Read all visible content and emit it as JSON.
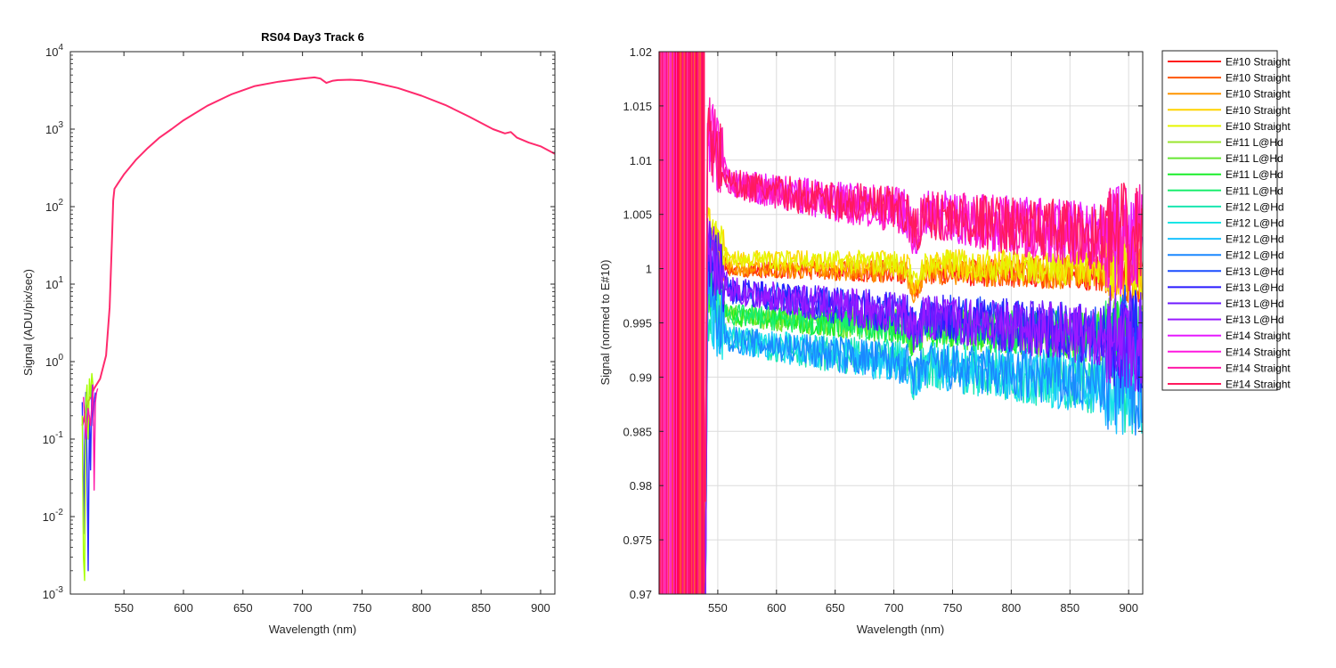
{
  "chart_data": [
    {
      "type": "line",
      "title": "RS04 Day3 Track 6",
      "xlabel": "Wavelength (nm)",
      "ylabel": "Signal (ADU/pix/sec)",
      "yscale": "log",
      "xlim": [
        505,
        912
      ],
      "ylim": [
        0.001,
        10000
      ],
      "xticks": [
        550,
        600,
        650,
        700,
        750,
        800,
        850,
        900
      ],
      "yticks": [
        0.001,
        0.01,
        0.1,
        1,
        10,
        100,
        1000,
        10000
      ],
      "ytick_labels": [
        {
          "base": "10",
          "exp": "-3"
        },
        {
          "base": "10",
          "exp": "-2"
        },
        {
          "base": "10",
          "exp": "-1"
        },
        {
          "base": "10",
          "exp": "0"
        },
        {
          "base": "10",
          "exp": "1"
        },
        {
          "base": "10",
          "exp": "2"
        },
        {
          "base": "10",
          "exp": "3"
        },
        {
          "base": "10",
          "exp": "4"
        }
      ],
      "grid": false,
      "series": [
        {
          "color": "#ff2a6d",
          "x": [
            515,
            520,
            525,
            530,
            535,
            538,
            540,
            541,
            542,
            545,
            550,
            560,
            570,
            580,
            590,
            600,
            620,
            640,
            660,
            680,
            700,
            710,
            715,
            720,
            725,
            730,
            740,
            750,
            760,
            780,
            800,
            820,
            840,
            860,
            870,
            875,
            880,
            890,
            900,
            912
          ],
          "y": [
            0.15,
            0.3,
            0.45,
            0.6,
            1.2,
            5,
            40,
            120,
            170,
            200,
            260,
            400,
            570,
            780,
            1000,
            1300,
            2000,
            2800,
            3600,
            4100,
            4500,
            4650,
            4500,
            3950,
            4200,
            4300,
            4350,
            4250,
            4000,
            3400,
            2700,
            2050,
            1450,
            1000,
            880,
            920,
            780,
            670,
            600,
            480
          ]
        },
        {
          "color": "#2b2bff",
          "x": [
            515,
            516,
            517,
            518,
            519,
            520,
            521,
            522,
            523,
            524,
            525,
            526
          ],
          "y": [
            0.3,
            0.006,
            0.08,
            0.4,
            0.05,
            0.002,
            0.2,
            0.04,
            0.5,
            0.15,
            0.3,
            0.4
          ]
        },
        {
          "color": "#a6ff00",
          "x": [
            515,
            516,
            517,
            518,
            519,
            520,
            521,
            522,
            523,
            524
          ],
          "y": [
            0.2,
            0.003,
            0.0015,
            0.3,
            0.5,
            0.1,
            0.6,
            0.35,
            0.7,
            0.5
          ]
        },
        {
          "color": "#ff1aa8",
          "x": [
            516,
            518,
            520,
            522,
            524,
            525,
            526,
            527,
            528
          ],
          "y": [
            0.35,
            0.1,
            0.25,
            0.15,
            0.5,
            0.022,
            0.3,
            0.4,
            0.45
          ]
        }
      ]
    },
    {
      "type": "line",
      "title": "",
      "xlabel": "Wavelength (nm)",
      "ylabel": "Signal (normed to E#10)",
      "xlim": [
        500,
        912
      ],
      "ylim": [
        0.97,
        1.02
      ],
      "xticks": [
        550,
        600,
        650,
        700,
        750,
        800,
        850,
        900
      ],
      "yticks": [
        0.97,
        0.975,
        0.98,
        0.985,
        0.99,
        0.995,
        1,
        1.005,
        1.01,
        1.015,
        1.02
      ],
      "ytick_labels": [
        "0.97",
        "0.975",
        "0.98",
        "0.985",
        "0.99",
        "0.995",
        "1",
        "1.005",
        "1.01",
        "1.015",
        "1.02"
      ],
      "grid": true,
      "legend": "outside-right",
      "saturated_band": {
        "x_start": 500,
        "x_end": 539,
        "colors": [
          "#ff00aa",
          "#ff2a6d",
          "#ff5a3a",
          "#ff0066",
          "#ff3fd0",
          "#ff1744"
        ]
      },
      "series": [
        {
          "name": "E#10 Straight",
          "color": "#ff1a1a",
          "start": 1.0,
          "end": 0.9995,
          "noise": 0.0006,
          "spread": 0.0028
        },
        {
          "name": "E#10 Straight",
          "color": "#ff5500",
          "start": 1.0,
          "end": 0.9995,
          "noise": 0.0006,
          "spread": 0.0028
        },
        {
          "name": "E#10 Straight",
          "color": "#ff9500",
          "start": 1.0,
          "end": 0.9995,
          "noise": 0.0006,
          "spread": 0.0028
        },
        {
          "name": "E#10 Straight",
          "color": "#ffd400",
          "start": 1.001,
          "end": 1.0,
          "noise": 0.0007,
          "spread": 0.0028
        },
        {
          "name": "E#10 Straight",
          "color": "#e6f500",
          "start": 1.001,
          "end": 1.0,
          "noise": 0.0007,
          "spread": 0.0028
        },
        {
          "name": "E#11 L@Hd",
          "color": "#9ae62e",
          "start": 0.996,
          "end": 0.9935,
          "noise": 0.0009,
          "spread": 0.003
        },
        {
          "name": "E#11 L@Hd",
          "color": "#66e633",
          "start": 0.996,
          "end": 0.9935,
          "noise": 0.0009,
          "spread": 0.003
        },
        {
          "name": "E#11 L@Hd",
          "color": "#1aee2a",
          "start": 0.996,
          "end": 0.9935,
          "noise": 0.0009,
          "spread": 0.003
        },
        {
          "name": "E#11 L@Hd",
          "color": "#1aee6e",
          "start": 0.996,
          "end": 0.9935,
          "noise": 0.0009,
          "spread": 0.003
        },
        {
          "name": "E#12 L@Hd",
          "color": "#1ae6b0",
          "start": 0.994,
          "end": 0.989,
          "noise": 0.0011,
          "spread": 0.003
        },
        {
          "name": "E#12 L@Hd",
          "color": "#1ae6e6",
          "start": 0.994,
          "end": 0.989,
          "noise": 0.0011,
          "spread": 0.003
        },
        {
          "name": "E#12 L@Hd",
          "color": "#1ac2ff",
          "start": 0.994,
          "end": 0.989,
          "noise": 0.0011,
          "spread": 0.003
        },
        {
          "name": "E#12 L@Hd",
          "color": "#1a88ff",
          "start": 0.994,
          "end": 0.989,
          "noise": 0.0011,
          "spread": 0.003
        },
        {
          "name": "E#13 L@Hd",
          "color": "#1a4dff",
          "start": 0.9985,
          "end": 0.9935,
          "noise": 0.0011,
          "spread": 0.0035
        },
        {
          "name": "E#13 L@Hd",
          "color": "#2a1aff",
          "start": 0.9985,
          "end": 0.9935,
          "noise": 0.0011,
          "spread": 0.0035
        },
        {
          "name": "E#13 L@Hd",
          "color": "#6e1aff",
          "start": 0.9985,
          "end": 0.9935,
          "noise": 0.0011,
          "spread": 0.0035
        },
        {
          "name": "E#13 L@Hd",
          "color": "#9a1aff",
          "start": 0.9985,
          "end": 0.9935,
          "noise": 0.0011,
          "spread": 0.0035
        },
        {
          "name": "E#14 Straight",
          "color": "#e61aff",
          "start": 1.0085,
          "end": 1.0025,
          "noise": 0.0012,
          "spread": 0.0045
        },
        {
          "name": "E#14 Straight",
          "color": "#ff1ae0",
          "start": 1.0085,
          "end": 1.0025,
          "noise": 0.0012,
          "spread": 0.0045
        },
        {
          "name": "E#14 Straight",
          "color": "#ff1aa8",
          "start": 1.0085,
          "end": 1.0025,
          "noise": 0.0012,
          "spread": 0.0045
        },
        {
          "name": "E#14 Straight",
          "color": "#ff1a5e",
          "start": 1.0085,
          "end": 1.0025,
          "noise": 0.0012,
          "spread": 0.0045
        }
      ]
    }
  ]
}
